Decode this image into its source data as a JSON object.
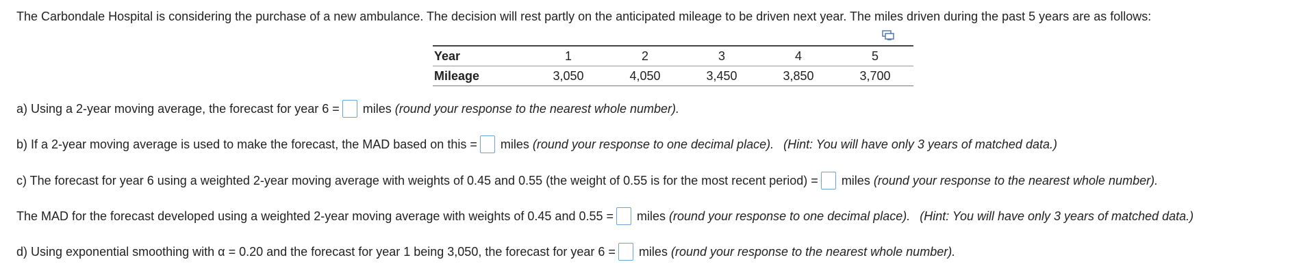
{
  "intro": "The Carbondale Hospital is considering the purchase of a new ambulance. The decision will rest partly on the anticipated mileage to be driven next year. The miles driven during the past 5 years are as follows:",
  "table": {
    "row1_label": "Year",
    "row2_label": "Mileage",
    "years": [
      "1",
      "2",
      "3",
      "4",
      "5"
    ],
    "mileage": [
      "3,050",
      "4,050",
      "3,450",
      "3,850",
      "3,700"
    ]
  },
  "questions": {
    "a": {
      "prefix": "a) Using a 2-year moving average, the forecast for year 6 =",
      "unit": "miles",
      "note": "(round your response to the nearest whole number).",
      "answer": ""
    },
    "b": {
      "prefix": "b) If a 2-year moving average is used to make the forecast, the MAD based on this =",
      "unit": "miles",
      "note": "(round your response to one decimal place).",
      "hint": "(Hint: You will have only 3 years of matched data.)",
      "answer": ""
    },
    "c": {
      "prefix": "c) The forecast for year 6 using a weighted 2-year moving average with weights of 0.45 and 0.55 (the weight of 0.55 is for the most recent period) =",
      "unit": "miles",
      "note": "(round your response to the nearest whole number).",
      "answer": ""
    },
    "c2": {
      "prefix": "The MAD for the forecast developed using a weighted 2-year moving average with weights of 0.45 and 0.55 =",
      "unit": "miles",
      "note": "(round your response to one decimal place).",
      "hint": "(Hint: You will have only 3 years of matched data.)",
      "answer": ""
    },
    "d": {
      "prefix": "d) Using exponential smoothing with α = 0.20 and the forecast for year 1 being 3,050, the forecast for year 6 =",
      "unit": "miles",
      "note": "(round your response to the nearest whole number).",
      "answer": ""
    }
  },
  "icons": {
    "copy": "copy-icon"
  },
  "colors": {
    "input_border": "#6aa3d8",
    "text": "#222222"
  }
}
